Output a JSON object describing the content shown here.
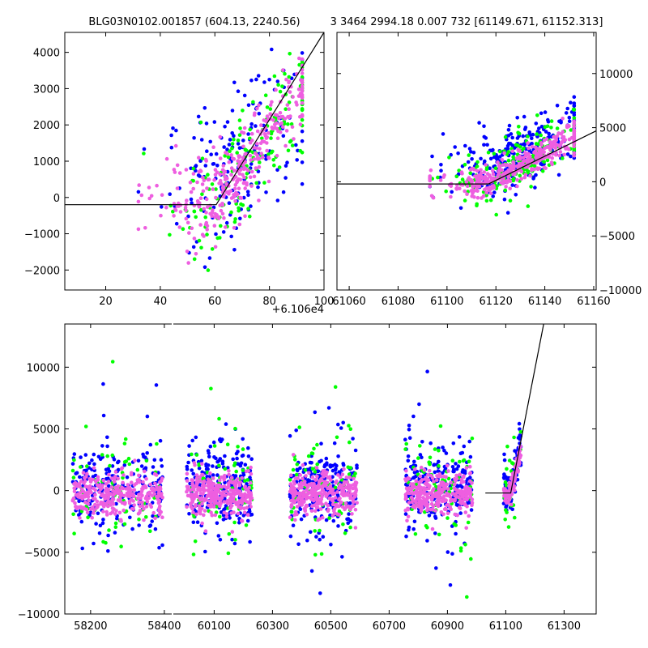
{
  "colors": {
    "blue": "#0000ff",
    "green": "#00ff00",
    "magenta": "#ee5fe0",
    "line": "#000000"
  },
  "chart_data": [
    {
      "id": "top-left",
      "type": "scatter",
      "title": "BLG03N0102.001857 (604.13, 2240.56)",
      "xlim": [
        5,
        100
      ],
      "ylim": [
        -2550,
        4550
      ],
      "xticks": [
        20,
        40,
        60,
        80,
        100
      ],
      "xtick_labels": [
        "20",
        "40",
        "60",
        "80",
        "100"
      ],
      "yticks": [
        -2000,
        -1000,
        0,
        1000,
        2000,
        3000,
        4000
      ],
      "ytick_labels": [
        "−2000",
        "−1000",
        "0",
        "1000",
        "2000",
        "3000",
        "4000"
      ],
      "offset_label": "+6.106e4",
      "model_line": {
        "x": [
          5,
          60.5,
          100
        ],
        "y": [
          -200,
          -200,
          4550
        ]
      },
      "series": [
        {
          "name": "blue",
          "color": "blue",
          "x_center": 70,
          "x_spread": 14,
          "slope": 75,
          "x0": 60,
          "base": 300,
          "noise": 1100,
          "count": 180,
          "xmin": 32,
          "xmax": 92
        },
        {
          "name": "green",
          "color": "green",
          "x_center": 72,
          "x_spread": 14,
          "slope": 90,
          "x0": 60,
          "base": -100,
          "noise": 800,
          "count": 160,
          "xmin": 33,
          "xmax": 92
        },
        {
          "name": "magenta",
          "color": "magenta",
          "x_center": 68,
          "x_spread": 15,
          "slope": 95,
          "x0": 60,
          "base": -150,
          "noise": 550,
          "count": 320,
          "xmin": 32,
          "xmax": 92
        }
      ]
    },
    {
      "id": "top-right",
      "type": "scatter",
      "title": "3 3464 2994.18 0.007 732 [61149.671, 61152.313]",
      "xlim": [
        61055,
        61161
      ],
      "ylim": [
        -10000,
        13800
      ],
      "xticks": [
        61060,
        61080,
        61100,
        61120,
        61140,
        61160
      ],
      "xtick_labels": [
        "61060",
        "61080",
        "61100",
        "61120",
        "61140",
        "61160"
      ],
      "yticks": [
        -10000,
        -5000,
        0,
        5000,
        10000
      ],
      "ytick_labels": [
        "−10000",
        "−5000",
        "0",
        "5000",
        "10000"
      ],
      "model_line": {
        "x": [
          61055,
          61117,
          61161
        ],
        "y": [
          -200,
          -200,
          4700
        ]
      },
      "series": [
        {
          "name": "blue",
          "color": "blue",
          "x_center": 61130,
          "x_spread": 15,
          "slope": 115,
          "x0": 61117,
          "base": 1200,
          "noise": 1500,
          "count": 260,
          "xmin": 61093,
          "xmax": 61152
        },
        {
          "name": "green",
          "color": "green",
          "x_center": 61132,
          "x_spread": 15,
          "slope": 120,
          "x0": 61117,
          "base": 200,
          "noise": 1300,
          "count": 180,
          "xmin": 61094,
          "xmax": 61152
        },
        {
          "name": "magenta",
          "color": "magenta",
          "x_center": 61128,
          "x_spread": 16,
          "slope": 120,
          "x0": 61117,
          "base": -100,
          "noise": 700,
          "count": 360,
          "xmin": 61093,
          "xmax": 61152
        }
      ]
    },
    {
      "id": "bottom",
      "type": "scatter",
      "title": "",
      "ylim": [
        -10000,
        13500
      ],
      "yticks": [
        -10000,
        -5000,
        0,
        5000,
        10000
      ],
      "ytick_labels": [
        "−10000",
        "−5000",
        "0",
        "5000",
        "10000"
      ],
      "segments": [
        {
          "xlim": [
            58130,
            58420
          ],
          "xticks": [
            58200,
            58400
          ],
          "xtick_labels": [
            "58200",
            "58400"
          ]
        },
        {
          "xlim": [
            59960,
            61410
          ],
          "xticks": [
            60100,
            60300,
            60500,
            60700,
            60900,
            61100,
            61300
          ],
          "xtick_labels": [
            "60100",
            "60300",
            "60500",
            "60700",
            "60900",
            "61100",
            "61300"
          ]
        }
      ],
      "clusters": [
        {
          "seg": 0,
          "xmin": 58150,
          "xmax": 58395
        },
        {
          "seg": 1,
          "xmin": 60005,
          "xmax": 60230
        },
        {
          "seg": 1,
          "xmin": 60360,
          "xmax": 60590
        },
        {
          "seg": 1,
          "xmin": 60755,
          "xmax": 60985
        },
        {
          "seg": 1,
          "xmin": 61093,
          "xmax": 61152,
          "ramp": true
        }
      ],
      "model_line": {
        "x": [
          61030,
          61117,
          61230
        ],
        "y": [
          -200,
          -200,
          13500
        ]
      },
      "series": [
        {
          "name": "blue",
          "color": "blue",
          "noise": 2600,
          "count": 220
        },
        {
          "name": "green",
          "color": "green",
          "noise": 3200,
          "count": 70
        },
        {
          "name": "magenta",
          "color": "magenta",
          "noise": 900,
          "count": 300
        }
      ]
    }
  ]
}
